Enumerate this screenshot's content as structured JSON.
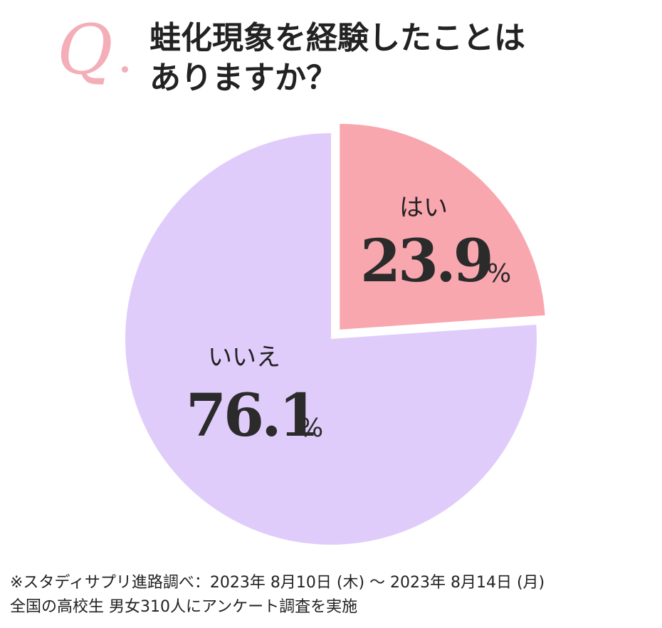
{
  "question_mark": "Q",
  "title": {
    "line1": "蛙化現象を経験したことは",
    "line2": "ありますか？"
  },
  "chart_data": {
    "type": "pie",
    "categories": [
      "はい",
      "いいえ"
    ],
    "values": [
      23.9,
      76.1
    ],
    "unit": "%",
    "colors": [
      "#f9a7af",
      "#e0ccfb"
    ],
    "exploded": "はい"
  },
  "labels": {
    "yes": {
      "name": "はい",
      "value": "23.9",
      "unit": "%"
    },
    "no": {
      "name": "いいえ",
      "value": "76.1",
      "unit": "%"
    }
  },
  "footer": {
    "line1": "※スタディサプリ進路調べ：2023年 8月10日 (木) ～ 2023年 8月14日 (月)",
    "line2": "全国の高校生 男女310人にアンケート調査を実施"
  }
}
